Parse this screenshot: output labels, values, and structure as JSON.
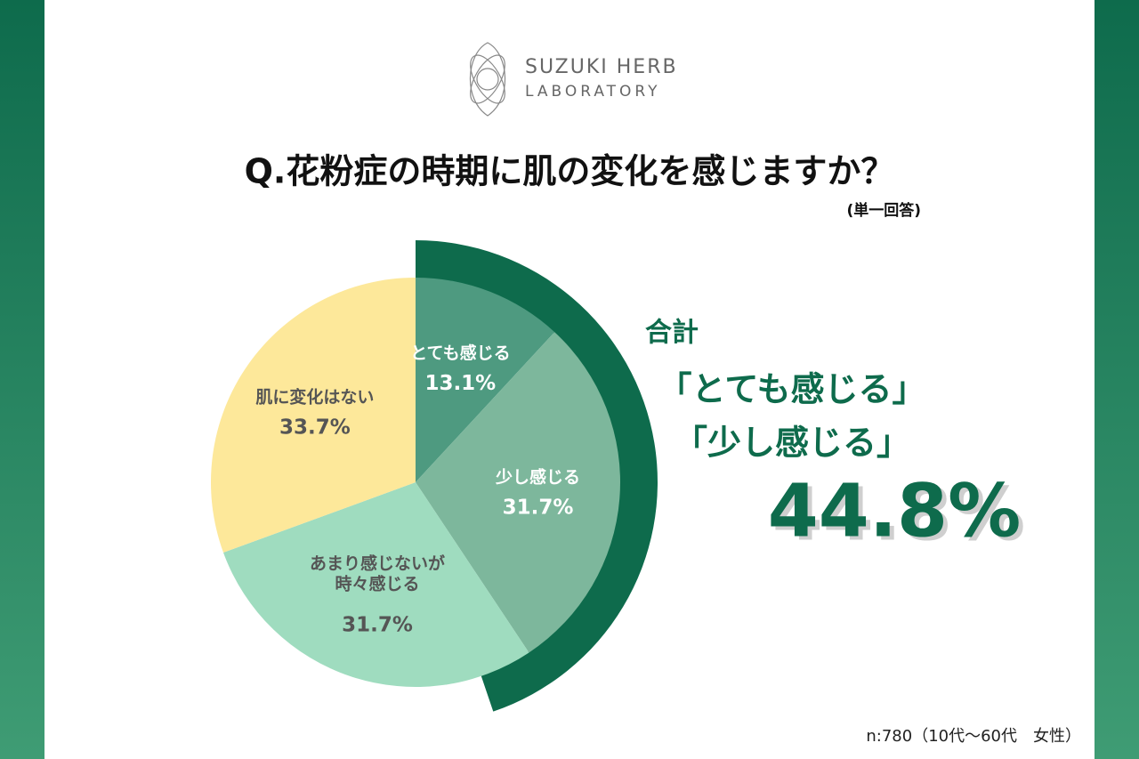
{
  "logo": {
    "line1": "SUZUKI HERB",
    "line2": "LABORATORY"
  },
  "chart_data": {
    "type": "pie",
    "title": "Q.花粉症の時期に肌の変化を感じますか？",
    "subtitle": "(単一回答)",
    "categories": [
      "とても感じる",
      "少し感じる",
      "あまり感じないが\n時々感じる",
      "肌に変化はない"
    ],
    "values": [
      13.1,
      31.7,
      31.7,
      33.7
    ],
    "value_labels": [
      "13.1%",
      "31.7%",
      "31.7%",
      "33.7%"
    ],
    "colors": [
      "#4e9a80",
      "#7db79c",
      "#9fdcbf",
      "#fde89a"
    ],
    "total": {
      "label": "合計",
      "items": [
        "「とても感じる」",
        "「少し感じる」"
      ],
      "value": 44.8,
      "value_label": "44.8%",
      "color": "#0e6b4c"
    },
    "note": "n:780（10代〜60代　女性）"
  }
}
